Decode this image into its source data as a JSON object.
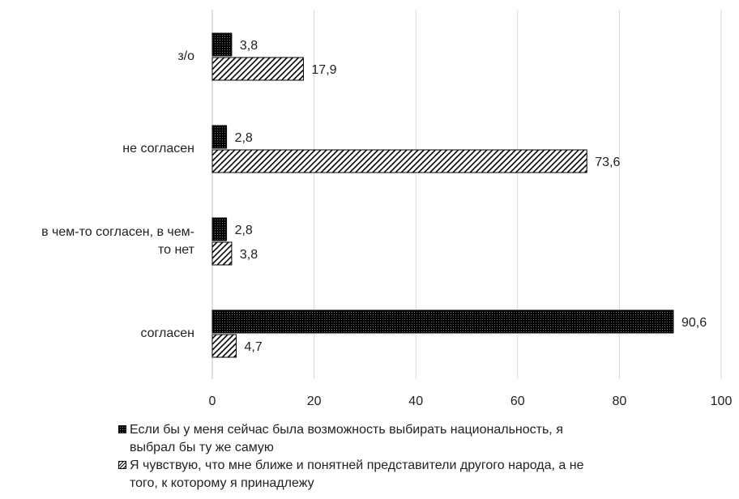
{
  "chart_data": {
    "type": "bar",
    "orientation": "horizontal",
    "categories": [
      "з/о",
      "не согласен",
      "в чем-то согласен, в чем-то нет",
      "согласен"
    ],
    "category_lines": [
      [
        "з/о"
      ],
      [
        "не согласен"
      ],
      [
        "в чем-то согласен, в чем-",
        "то нет"
      ],
      [
        "согласен"
      ]
    ],
    "series": [
      {
        "name": "Если бы у меня сейчас была возможность выбирать национальность, я выбрал бы ту же самую",
        "legend_lines": [
          "Если бы у меня сейчас была возможность выбирать национальность, я",
          "выбрал бы ту же самую"
        ],
        "values": [
          3.8,
          2.8,
          2.8,
          90.6
        ],
        "labels": [
          "3,8",
          "2,8",
          "2,8",
          "90,6"
        ],
        "fill": "dense-dots"
      },
      {
        "name": "Я чувствую, что мне ближе и понятней представители другого народа, а не того, к которому я принадлежу",
        "legend_lines": [
          "Я чувствую, что мне ближе и понятней представители другого народа, а не",
          "того, к которому я принадлежу"
        ],
        "values": [
          17.9,
          73.6,
          3.8,
          4.7
        ],
        "labels": [
          "17,9",
          "73,6",
          "3,8",
          "4,7"
        ],
        "fill": "diagonal-hatch"
      }
    ],
    "xlim": [
      0,
      100
    ],
    "x_ticks": [
      0,
      20,
      40,
      60,
      80,
      100
    ],
    "x_tick_labels": [
      "0",
      "20",
      "40",
      "60",
      "80",
      "100"
    ],
    "grid": "vertical",
    "legend_position": "bottom",
    "title": "",
    "xlabel": "",
    "ylabel": ""
  }
}
